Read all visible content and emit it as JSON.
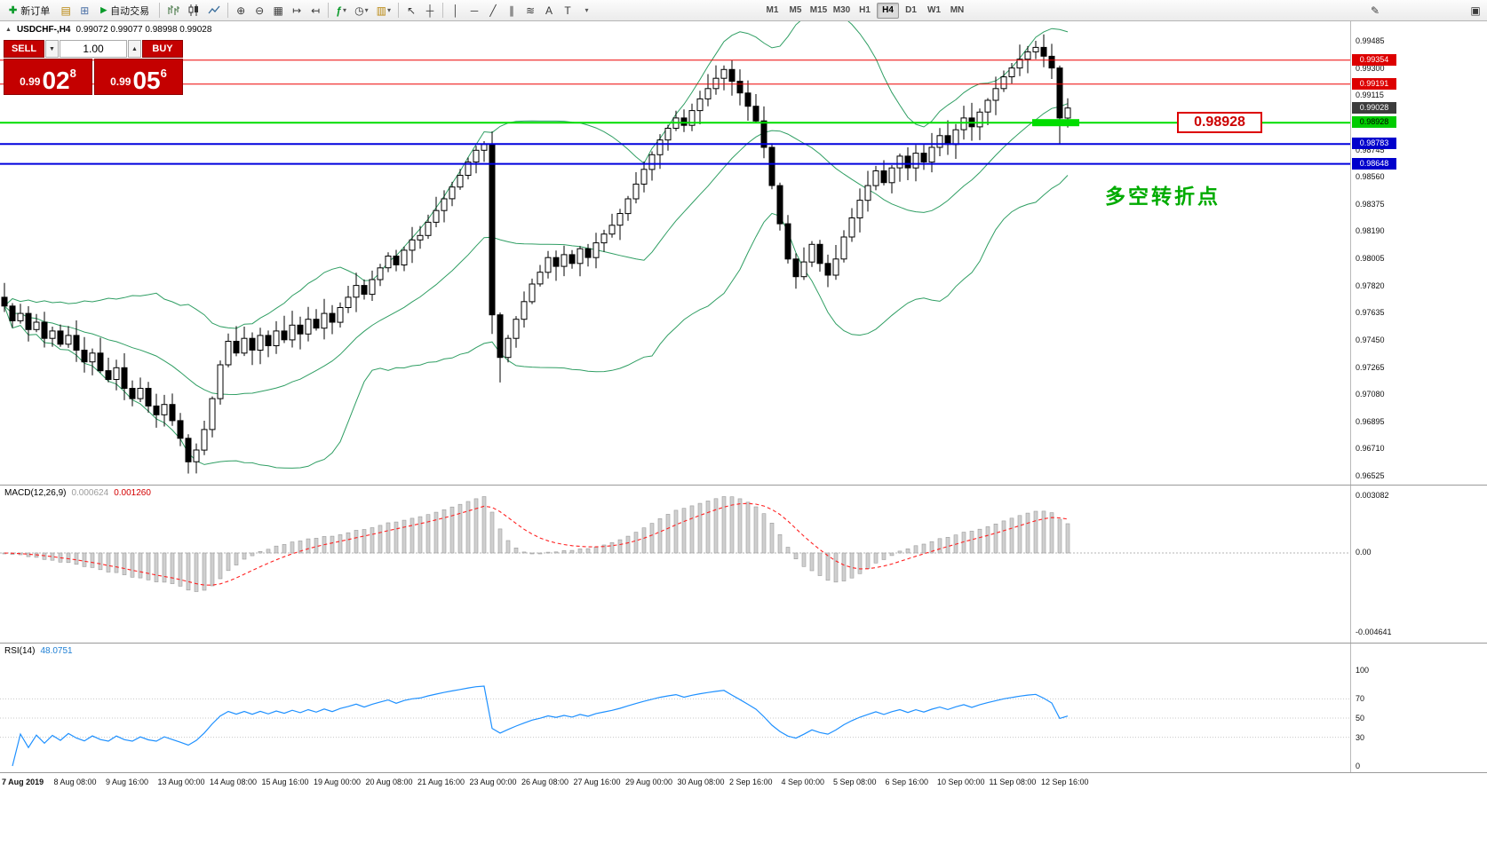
{
  "toolbar": {
    "new_order_label": "新订单",
    "autotrading_label": "自动交易",
    "timeframes": [
      "M1",
      "M5",
      "M15",
      "M30",
      "H1",
      "H4",
      "D1",
      "W1",
      "MN"
    ],
    "active_timeframe": "H4",
    "icons": {
      "new_order": "✚",
      "profiles": "▤",
      "market_watch": "⊞",
      "play": "▶",
      "zoom_in": "⊕",
      "zoom_out": "⊖",
      "tile": "▦",
      "auto_scroll": "↦",
      "chart_shift": "↤",
      "indicators": "ƒ",
      "caret": "▾",
      "periods": "◷",
      "templates": "▥",
      "cursor": "↖",
      "crosshair": "┼",
      "vline": "│",
      "hline": "─",
      "trendline": "╱",
      "channel": "∥",
      "fibonacci": "≋",
      "text": "A",
      "label": "T",
      "pencil": "✎",
      "panels": "▣"
    }
  },
  "chart": {
    "collapse_marker": "▲",
    "symbol_period": "USDCHF-,H4",
    "ohlc_text": "0.99072 0.99077 0.98998 0.99028"
  },
  "trade": {
    "sell_label": "SELL",
    "buy_label": "BUY",
    "volume": "1.00",
    "sell_price_main": "0.99",
    "sell_price_big": "02",
    "sell_price_sup": "8",
    "buy_price_main": "0.99",
    "buy_price_big": "05",
    "buy_price_sup": "6"
  },
  "annotations": {
    "pivot_price": "0.98928",
    "pivot_text": "多空转折点"
  },
  "price_scale": {
    "ticks": [
      "0.99485",
      "0.99300",
      "0.99115",
      "0.98930",
      "0.98745",
      "0.98560",
      "0.98375",
      "0.98190",
      "0.98005",
      "0.97820",
      "0.97635",
      "0.97450",
      "0.97265",
      "0.97080",
      "0.96895",
      "0.96710",
      "0.96525"
    ],
    "badges": [
      {
        "text": "0.99354",
        "bg": "#dd0000",
        "fg": "#ffffff"
      },
      {
        "text": "0.99191",
        "bg": "#dd0000",
        "fg": "#ffffff"
      },
      {
        "text": "0.99028",
        "bg": "#3c3c3c",
        "fg": "#ffffff"
      },
      {
        "text": "0.98928",
        "bg": "#00cc00",
        "fg": "#000000"
      },
      {
        "text": "0.98783",
        "bg": "#0000cc",
        "fg": "#ffffff"
      },
      {
        "text": "0.98648",
        "bg": "#0000cc",
        "fg": "#ffffff"
      }
    ]
  },
  "macd_panel": {
    "name": "MACD(12,26,9)",
    "value_main": "0.000624",
    "value_signal": "0.001260",
    "scale_top": "0.003082",
    "scale_zero": "0.00",
    "scale_bottom": "-0.004641"
  },
  "rsi_panel": {
    "name": "RSI(14)",
    "value": "48.0751",
    "scale": [
      "100",
      "70",
      "50",
      "30",
      "0"
    ]
  },
  "time_axis": [
    "7 Aug 2019",
    "8 Aug 08:00",
    "9 Aug 16:00",
    "13 Aug 00:00",
    "14 Aug 08:00",
    "15 Aug 16:00",
    "19 Aug 00:00",
    "20 Aug 08:00",
    "21 Aug 16:00",
    "23 Aug 00:00",
    "26 Aug 08:00",
    "27 Aug 16:00",
    "29 Aug 00:00",
    "30 Aug 08:00",
    "2 Sep 16:00",
    "4 Sep 00:00",
    "5 Sep 08:00",
    "6 Sep 16:00",
    "10 Sep 00:00",
    "11 Sep 08:00",
    "12 Sep 16:00"
  ],
  "chart_data": {
    "type": "candlestick",
    "symbol": "USDCHF",
    "period": "H4",
    "current": {
      "open": 0.99072,
      "high": 0.99077,
      "low": 0.98998,
      "close": 0.99028
    },
    "bid": 0.99028,
    "ask": 0.99056,
    "y_axis": {
      "first_tick": 0.99485,
      "step": 0.00185,
      "count": 17
    },
    "closes": [
      0.9768,
      0.9758,
      0.9763,
      0.9752,
      0.9757,
      0.9746,
      0.9751,
      0.9742,
      0.9748,
      0.9738,
      0.973,
      0.9736,
      0.9724,
      0.9718,
      0.9726,
      0.9712,
      0.9705,
      0.9712,
      0.97,
      0.9694,
      0.9701,
      0.969,
      0.9678,
      0.9662,
      0.967,
      0.9684,
      0.9705,
      0.9728,
      0.9744,
      0.9736,
      0.9746,
      0.9738,
      0.9748,
      0.9741,
      0.9751,
      0.9745,
      0.9755,
      0.9749,
      0.9759,
      0.9753,
      0.9763,
      0.9757,
      0.9767,
      0.9774,
      0.9782,
      0.9776,
      0.9786,
      0.9794,
      0.9802,
      0.9796,
      0.9806,
      0.9813,
      0.9816,
      0.9825,
      0.9833,
      0.9841,
      0.9849,
      0.9857,
      0.9866,
      0.9874,
      0.9878,
      0.9762,
      0.9733,
      0.9746,
      0.9759,
      0.9771,
      0.9783,
      0.9791,
      0.9801,
      0.9795,
      0.9803,
      0.9797,
      0.9807,
      0.9801,
      0.9811,
      0.9817,
      0.9823,
      0.9831,
      0.9841,
      0.9851,
      0.9861,
      0.9871,
      0.9881,
      0.9889,
      0.9896,
      0.9891,
      0.9901,
      0.9909,
      0.9916,
      0.9923,
      0.9929,
      0.9921,
      0.9913,
      0.9904,
      0.9894,
      0.9876,
      0.985,
      0.9824,
      0.98,
      0.9788,
      0.9798,
      0.981,
      0.9797,
      0.9789,
      0.98,
      0.9815,
      0.9828,
      0.984,
      0.985,
      0.986,
      0.9852,
      0.9862,
      0.987,
      0.9862,
      0.9872,
      0.9866,
      0.9876,
      0.9884,
      0.9878,
      0.9888,
      0.9896,
      0.989,
      0.99,
      0.9908,
      0.9916,
      0.9924,
      0.993,
      0.9936,
      0.9941,
      0.9944,
      0.9938,
      0.993,
      0.9896,
      0.99028
    ],
    "wick_overrides": {
      "23": {
        "low": 0.9654
      },
      "61": {
        "low": 0.9749
      },
      "62": {
        "low": 0.9716
      },
      "129": {
        "high": 0.99485
      },
      "132": {
        "low": 0.98785
      }
    },
    "levels": [
      {
        "price": 0.99354,
        "color": "#ee0000",
        "w": 1
      },
      {
        "price": 0.99191,
        "color": "#ee0000",
        "w": 1
      },
      {
        "price": 0.98928,
        "color": "#00dd00",
        "w": 2
      },
      {
        "price": 0.98783,
        "color": "#0000dd",
        "w": 2
      },
      {
        "price": 0.98648,
        "color": "#0000dd",
        "w": 2
      }
    ],
    "highlight": {
      "price": 0.98928,
      "from_candle": 129,
      "to_candle": 134,
      "color": "#00dd00"
    },
    "bollinger": {
      "period": 20,
      "deviation": 2,
      "color": "#2f9e63"
    },
    "macd": {
      "fast": 12,
      "slow": 26,
      "signal": 9,
      "histogram_color": "#cfcfcf",
      "signal_color": "#ff2222",
      "range": [
        -0.004641,
        0.003082
      ]
    },
    "rsi": {
      "period": 14,
      "color": "#1e90ff",
      "levels": [
        70,
        50,
        30
      ]
    }
  }
}
